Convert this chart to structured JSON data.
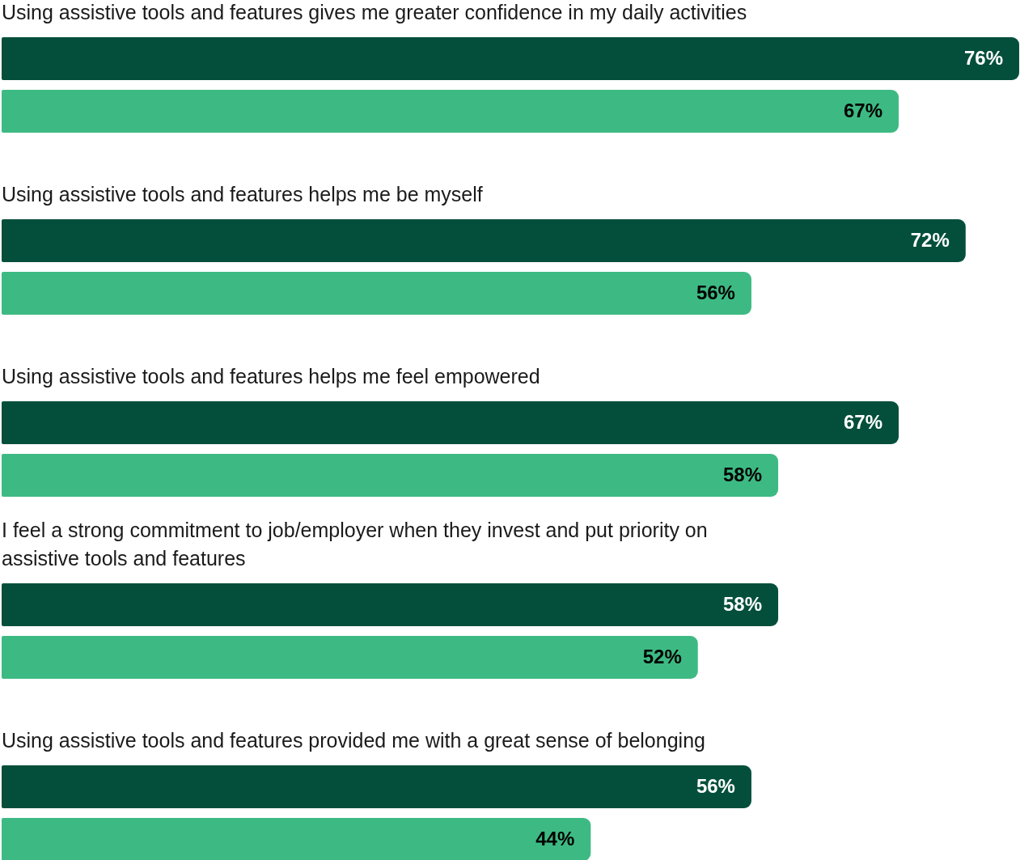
{
  "chart_data": {
    "type": "bar",
    "orientation": "horizontal",
    "categories": [
      "Using assistive tools and features gives me greater confidence in my daily activities",
      "Using assistive tools and features helps me be myself",
      "Using assistive tools and features helps me feel empowered",
      "I feel a strong commitment to job/employer when they invest and put priority on assistive tools and features",
      "Using assistive tools and features provided me with a great sense of belonging"
    ],
    "series": [
      {
        "color": "#034f3b",
        "values": [
          76,
          72,
          67,
          58,
          56
        ],
        "value_labels": [
          "76%",
          "72%",
          "67%",
          "58%",
          "56%"
        ]
      },
      {
        "color": "#3dba83",
        "values": [
          67,
          56,
          58,
          52,
          44
        ],
        "value_labels": [
          "67%",
          "56%",
          "58%",
          "52%",
          "44%"
        ]
      }
    ],
    "legend": false
  }
}
